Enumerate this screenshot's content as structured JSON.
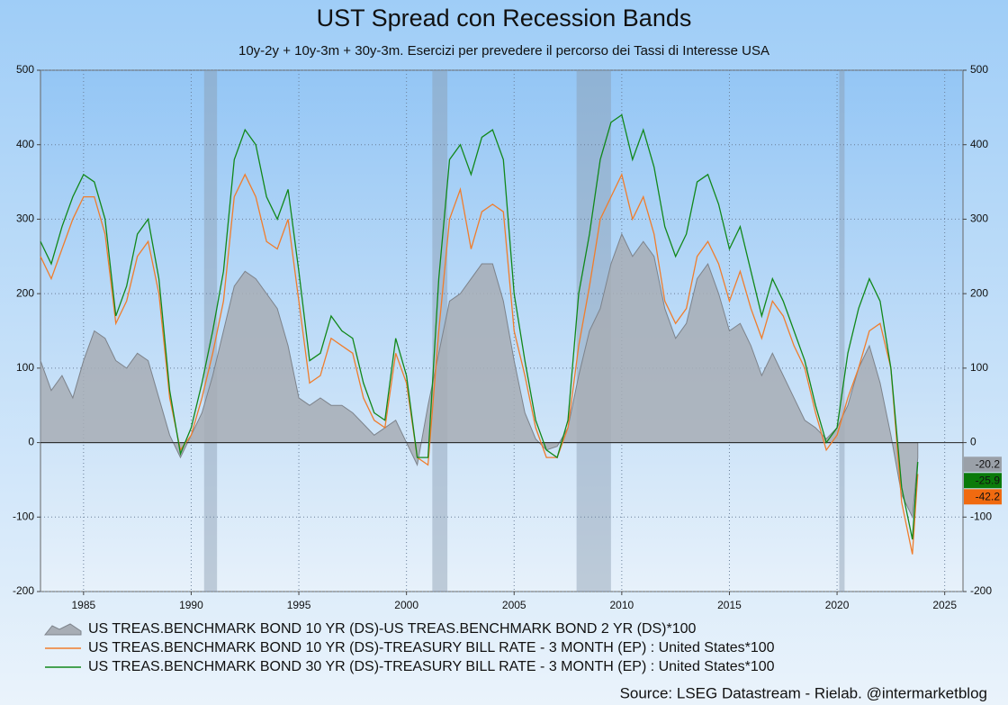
{
  "chart_data": {
    "type": "line",
    "title": "UST Spread con Recession Bands",
    "subtitle": "10y-2y + 10y-3m + 30y-3m. Esercizi per prevedere il percorso dei Tassi di Interesse USA",
    "source": "Source: LSEG Datastream  -  Rielab. @intermarketblog",
    "x": [
      1983.0,
      1983.5,
      1984.0,
      1984.5,
      1985.0,
      1985.5,
      1986.0,
      1986.5,
      1987.0,
      1987.5,
      1988.0,
      1988.5,
      1989.0,
      1989.5,
      1990.0,
      1990.5,
      1991.0,
      1991.5,
      1992.0,
      1992.5,
      1993.0,
      1993.5,
      1994.0,
      1994.5,
      1995.0,
      1995.5,
      1996.0,
      1996.5,
      1997.0,
      1997.5,
      1998.0,
      1998.5,
      1999.0,
      1999.5,
      2000.0,
      2000.5,
      2001.0,
      2001.5,
      2002.0,
      2002.5,
      2003.0,
      2003.5,
      2004.0,
      2004.5,
      2005.0,
      2005.5,
      2006.0,
      2006.5,
      2007.0,
      2007.5,
      2008.0,
      2008.5,
      2009.0,
      2009.5,
      2010.0,
      2010.5,
      2011.0,
      2011.5,
      2012.0,
      2012.5,
      2013.0,
      2013.5,
      2014.0,
      2014.5,
      2015.0,
      2015.5,
      2016.0,
      2016.5,
      2017.0,
      2017.5,
      2018.0,
      2018.5,
      2019.0,
      2019.5,
      2020.0,
      2020.5,
      2021.0,
      2021.5,
      2022.0,
      2022.5,
      2023.0,
      2023.5,
      2023.75
    ],
    "series": [
      {
        "name": "US TREAS.BENCHMARK BOND 10 YR (DS)-US TREAS.BENCHMARK BOND 2 YR (DS)*100",
        "color": "#a7adb5",
        "style": "area",
        "values": [
          110,
          70,
          90,
          60,
          110,
          150,
          140,
          110,
          100,
          120,
          110,
          60,
          10,
          -20,
          10,
          40,
          90,
          150,
          210,
          230,
          220,
          200,
          180,
          130,
          60,
          50,
          60,
          50,
          50,
          40,
          25,
          10,
          20,
          30,
          0,
          -30,
          50,
          120,
          190,
          200,
          220,
          240,
          240,
          190,
          110,
          40,
          5,
          -10,
          -5,
          20,
          90,
          150,
          180,
          240,
          280,
          250,
          270,
          250,
          180,
          140,
          160,
          220,
          240,
          200,
          150,
          160,
          130,
          90,
          120,
          90,
          60,
          30,
          20,
          5,
          20,
          50,
          100,
          130,
          80,
          10,
          -70,
          -100,
          -20.2
        ]
      },
      {
        "name": "US TREAS.BENCHMARK BOND 10 YR (DS)-TREASURY BILL RATE - 3 MONTH (EP) : United States*100",
        "color": "#f07d2c",
        "label_color": "#f06a10",
        "style": "line",
        "values": [
          250,
          220,
          260,
          300,
          330,
          330,
          280,
          160,
          190,
          250,
          270,
          200,
          60,
          -10,
          10,
          60,
          120,
          190,
          330,
          360,
          330,
          270,
          260,
          300,
          190,
          80,
          90,
          140,
          130,
          120,
          60,
          30,
          20,
          120,
          80,
          -20,
          -30,
          150,
          300,
          340,
          260,
          310,
          320,
          310,
          150,
          90,
          20,
          -20,
          -20,
          20,
          130,
          210,
          300,
          330,
          360,
          300,
          330,
          280,
          190,
          160,
          180,
          250,
          270,
          240,
          190,
          230,
          180,
          140,
          190,
          170,
          130,
          100,
          40,
          -10,
          10,
          60,
          100,
          150,
          160,
          100,
          -80,
          -150,
          -42.2
        ]
      },
      {
        "name": "US TREAS.BENCHMARK BOND 30 YR (DS)-TREASURY BILL RATE - 3 MONTH (EP) : United States*100",
        "color": "#11881a",
        "label_color": "#0a7a0a",
        "style": "line",
        "values": [
          270,
          240,
          290,
          330,
          360,
          350,
          300,
          170,
          210,
          280,
          300,
          220,
          70,
          -15,
          20,
          80,
          150,
          230,
          380,
          420,
          400,
          330,
          300,
          340,
          230,
          110,
          120,
          170,
          150,
          140,
          80,
          40,
          30,
          140,
          90,
          -20,
          -20,
          220,
          380,
          400,
          360,
          410,
          420,
          380,
          200,
          110,
          30,
          -10,
          -20,
          30,
          200,
          280,
          380,
          430,
          440,
          380,
          420,
          370,
          290,
          250,
          280,
          350,
          360,
          320,
          260,
          290,
          230,
          170,
          220,
          190,
          150,
          110,
          50,
          0,
          20,
          120,
          180,
          220,
          190,
          100,
          -60,
          -130,
          -25.9
        ]
      }
    ],
    "recessions": [
      [
        1990.6,
        1991.2
      ],
      [
        2001.2,
        2001.9
      ],
      [
        2007.9,
        2009.5
      ],
      [
        2020.1,
        2020.35
      ]
    ],
    "xlim": [
      1983,
      2025.85
    ],
    "xticks": [
      1985,
      1990,
      1995,
      2000,
      2005,
      2010,
      2015,
      2020,
      2025
    ],
    "ylim": [
      -200,
      500
    ],
    "yticks": [
      -200,
      -100,
      0,
      100,
      200,
      300,
      400,
      500
    ],
    "grid": true
  }
}
